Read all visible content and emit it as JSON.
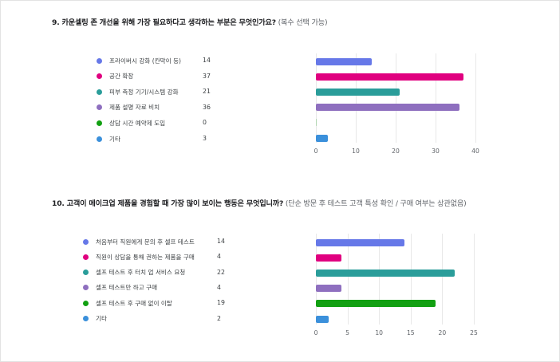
{
  "chart_data": [
    {
      "type": "bar",
      "orientation": "horizontal",
      "title": "9. 카운셀링 존 개선을 위해 가장 필요하다고 생각하는 부분은 무엇인가요?",
      "subtitle": "(복수 선택 가능)",
      "categories": [
        "프라이버시 강화 (칸막이 등)",
        "공간 확장",
        "피부 측정 기기/시스템 강화",
        "제품 설명 자료 비치",
        "상담 시간 예약제 도입",
        "기타"
      ],
      "values": [
        14,
        37,
        21,
        36,
        0,
        3
      ],
      "colors": [
        "#6678e8",
        "#e0007f",
        "#2a9d9a",
        "#8e6fbf",
        "#12a012",
        "#3b90db"
      ],
      "xlabel": "",
      "ylabel": "",
      "xlim": [
        0,
        40
      ],
      "xticks": [
        0,
        10,
        20,
        30,
        40
      ],
      "grid": true,
      "legend_position": "left"
    },
    {
      "type": "bar",
      "orientation": "horizontal",
      "title": "10. 고객이 메이크업 제품을 경험할 때 가장 많이 보이는 행동은 무엇입니까?",
      "subtitle": "(단순 방문 후 테스트 고객 특성 확인 / 구매 여부는 상관없음)",
      "categories": [
        "처음부터 직원에게 문의 후 셀프 테스트",
        "직원이 상담을 통해 권하는 제품을 구매",
        "셀프 테스트 후 터치 업 서비스 요청",
        "셀프 테스트만 하고 구매",
        "셀프 테스트 후 구매 없이 이탈",
        "기타"
      ],
      "values": [
        14,
        4,
        22,
        4,
        19,
        2
      ],
      "colors": [
        "#6678e8",
        "#e0007f",
        "#2a9d9a",
        "#8e6fbf",
        "#12a012",
        "#3b90db"
      ],
      "xlabel": "",
      "ylabel": "",
      "xlim": [
        0,
        25
      ],
      "xticks": [
        0,
        5,
        10,
        15,
        20,
        25
      ],
      "grid": true,
      "legend_position": "left"
    }
  ],
  "q9": {
    "title": "9. 카운셀링 존 개선을 위해 가장 필요하다고 생각하는 부분은 무엇인가요?",
    "note": "(복수 선택 가능)",
    "items": [
      {
        "label": "프라이버시 강화 (칸막이 등)",
        "value": "14",
        "color": "#6678e8"
      },
      {
        "label": "공간 확장",
        "value": "37",
        "color": "#e0007f"
      },
      {
        "label": "피부 측정 기기/시스템 강화",
        "value": "21",
        "color": "#2a9d9a"
      },
      {
        "label": "제품 설명 자료 비치",
        "value": "36",
        "color": "#8e6fbf"
      },
      {
        "label": "상담 시간 예약제 도입",
        "value": "0",
        "color": "#12a012"
      },
      {
        "label": "기타",
        "value": "3",
        "color": "#3b90db"
      }
    ],
    "ticks": [
      "0",
      "10",
      "20",
      "30",
      "40"
    ]
  },
  "q10": {
    "title": "10. 고객이 메이크업 제품을 경험할 때 가장 많이 보이는 행동은 무엇입니까?",
    "note": "(단순 방문 후 테스트 고객 특성 확인 / 구매 여부는 상관없음)",
    "items": [
      {
        "label": "처음부터 직원에게 문의 후 셀프 테스트",
        "value": "14",
        "color": "#6678e8"
      },
      {
        "label": "직원이 상담을 통해 권하는 제품을 구매",
        "value": "4",
        "color": "#e0007f"
      },
      {
        "label": "셀프 테스트 후 터치 업 서비스 요청",
        "value": "22",
        "color": "#2a9d9a"
      },
      {
        "label": "셀프 테스트만 하고 구매",
        "value": "4",
        "color": "#8e6fbf"
      },
      {
        "label": "셀프 테스트 후 구매 없이 이탈",
        "value": "19",
        "color": "#12a012"
      },
      {
        "label": "기타",
        "value": "2",
        "color": "#3b90db"
      }
    ],
    "ticks": [
      "0",
      "5",
      "10",
      "15",
      "20",
      "25"
    ]
  }
}
